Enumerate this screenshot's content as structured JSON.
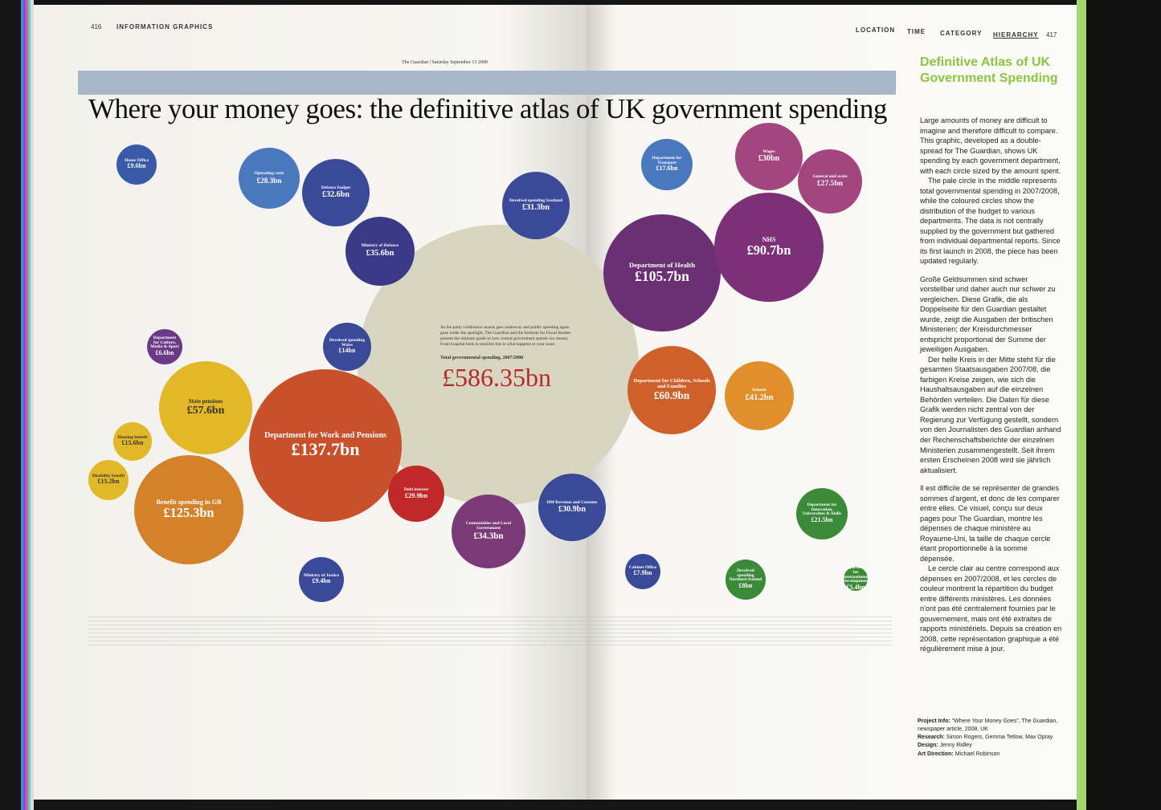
{
  "header": {
    "left_page": "416",
    "section": "INFORMATION GRAPHICS",
    "nav": [
      "LOCATION",
      "TIME",
      "CATEGORY",
      "HIERARCHY"
    ],
    "right_page": "417"
  },
  "graphic": {
    "newspaper": "The Guardian | Saturday September 13 2008",
    "title": "Where your money goes: the definitive atlas of UK government spending",
    "intro": "As the party conference season gets underway and public spending again goes under the spotlight, The Guardian and the Institute for Fiscal Studies present the ultimate guide to how central government spends our money. From hospital beds to missiles this is what happens to your taxes",
    "total_label": "Total governmental spending, 2007/2008",
    "total": "£586.35bn",
    "bubbles": [
      {
        "label": "Department for Work and Pensions",
        "amount": "£137.7bn"
      },
      {
        "label": "Benefit spending in GB",
        "amount": "£125.3bn"
      },
      {
        "label": "State pensions",
        "amount": "£57.6bn"
      },
      {
        "label": "Housing benefit",
        "amount": "£15.6bn"
      },
      {
        "label": "Disability benefit",
        "amount": "£15.2bn"
      },
      {
        "label": "Debt interest",
        "amount": "£29.9bn"
      },
      {
        "label": "Communities and Local Government",
        "amount": "£34.3bn"
      },
      {
        "label": "HM Revenue and Customs",
        "amount": "£30.9bn"
      },
      {
        "label": "Department of Health",
        "amount": "£105.7bn"
      },
      {
        "label": "NHS",
        "amount": "£90.7bn"
      },
      {
        "label": "Wages",
        "amount": "£30bn"
      },
      {
        "label": "General and acute",
        "amount": "£27.5bn"
      },
      {
        "label": "Department for Children, Schools and Families",
        "amount": "£60.9bn"
      },
      {
        "label": "Schools",
        "amount": "£41.2bn"
      },
      {
        "label": "Department for Transport",
        "amount": "£17.6bn"
      },
      {
        "label": "Department for Innovation, Universities & Skills",
        "amount": "£21.5bn"
      },
      {
        "label": "Devolved spending Northern Ireland",
        "amount": "£8bn"
      },
      {
        "label": "Department for International Development",
        "amount": "£5.4bn"
      },
      {
        "label": "Cabinet Office",
        "amount": "£7.9bn"
      },
      {
        "label": "Ministry of Justice",
        "amount": "£9.4bn"
      },
      {
        "label": "Devolved spending Wales",
        "amount": "£14bn"
      },
      {
        "label": "Ministry of Defence",
        "amount": "£35.6bn"
      },
      {
        "label": "Defence budget",
        "amount": "£32.6bn"
      },
      {
        "label": "Operating costs",
        "amount": "£28.3bn"
      },
      {
        "label": "Devolved spending Scotland",
        "amount": "£31.3bn"
      },
      {
        "label": "Home Office",
        "amount": "£9.6bn"
      },
      {
        "label": "Department for Culture, Media & Sport",
        "amount": "£6.6bn"
      }
    ]
  },
  "sidebar": {
    "title": "Definitive Atlas of UK Government Spending",
    "paragraphs": [
      "Large amounts of money are difficult to imagine and therefore difficult to compare. This graphic, developed as a double-spread for The Guardian, shows UK spending by each government department, with each circle sized by the amount spent.",
      "The pale circle in the middle represents total governmental spending in 2007/2008, while the coloured circles show the distribution of the budget to various departments. The data is not centrally supplied by the government but gathered from individual departmental reports. Since its first launch in 2008, the piece has been updated regularly.",
      "Große Geldsummen sind schwer vorstellbar und daher auch nur schwer zu vergleichen. Diese Grafik, die als Doppelseite für den Guardian gestaltet wurde, zeigt die Ausgaben der britischen Ministerien; der Kreisdurchmesser entspricht proportional der Summe der jeweiligen Ausgaben.",
      "Der helle Kreis in der Mitte steht für die gesamten Staatsausgaben 2007/08, die farbigen Kreise zeigen, wie sich die Haushaltsausgaben auf die einzelnen Behörden verteilen. Die Daten für diese Grafik werden nicht zentral von der Regierung zur Verfügung gestellt, sondern von den Journalisten des Guardian anhand der Rechenschaftsberichte der einzelnen Ministerien zusammengestellt. Seit ihrem ersten Erscheinen 2008 wird sie jährlich aktualisiert.",
      "Il est difficile de se représenter de grandes sommes d'argent, et donc de les comparer entre elles. Ce visuel, conçu sur deux pages pour The Guardian, montre les dépenses de chaque ministère au Royaume-Uni, la taille de chaque cercle étant proportionnelle à la somme dépensée.",
      "Le cercle clair au centre correspond aux dépenses en 2007/2008, et les cercles de couleur montrent la répartition du budget entre différents ministères. Les données n'ont pas été centralement fournies par le gouvernement, mais ont été extraites de rapports ministériels. Depuis sa création en 2008, cette représentation graphique a été régulièrement mise à jour."
    ],
    "credits": [
      {
        "label": "Project Info:",
        "text": "“Where Your Money Goes”, The Guardian, newspaper article, 2008, UK"
      },
      {
        "label": "Research:",
        "text": "Simon Rogers, Gemma Tetlow, Max Opray"
      },
      {
        "label": "Design:",
        "text": "Jenny Ridley"
      },
      {
        "label": "Art Direction:",
        "text": "Michael Robinson"
      }
    ]
  }
}
